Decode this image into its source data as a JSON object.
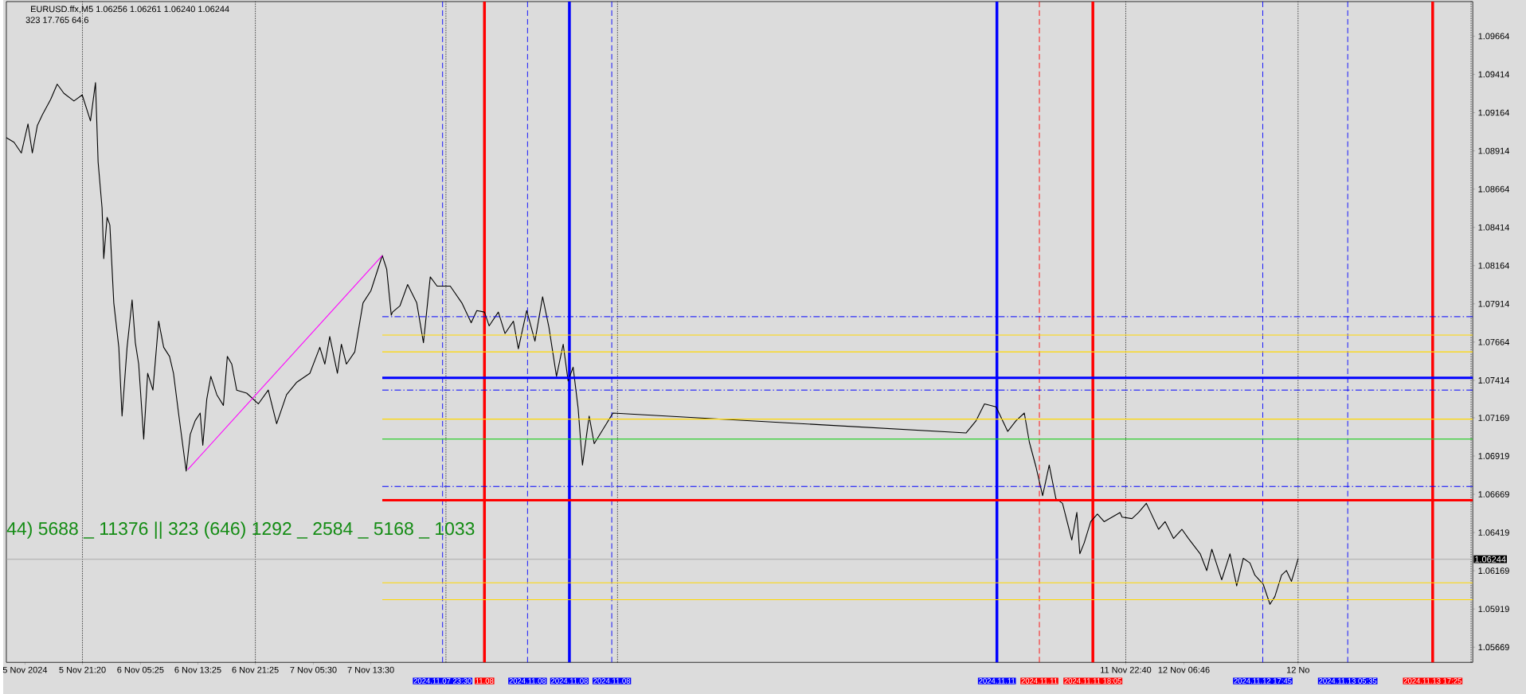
{
  "chart_data": {
    "type": "line",
    "title": "EURUSD.ffx,M5  1.06256 1.06261 1.06240 1.06244",
    "subtitle": "323  17.765  64.6",
    "annotations": [
      "44) 5688 _ 11376 || 323 (646) 1292 _ 2584 _ 5168 _ 1033"
    ],
    "xlim": [
      "2024-11-05T10:44",
      "2024-11-13T23:00"
    ],
    "ylim": [
      1.0557,
      1.0989
    ],
    "xticks": [
      {
        "value": "2024-11-05T13:20",
        "label": "5 Nov 2024"
      },
      {
        "value": "2024-11-05T21:20",
        "label": "5 Nov 21:20"
      },
      {
        "value": "2024-11-06T05:25",
        "label": "6 Nov 05:25"
      },
      {
        "value": "2024-11-06T13:25",
        "label": "6 Nov 13:25"
      },
      {
        "value": "2024-11-06T21:25",
        "label": "6 Nov 21:25"
      },
      {
        "value": "2024-11-07T05:30",
        "label": "7 Nov 05:30"
      },
      {
        "value": "2024-11-07T13:30",
        "label": "7 Nov 13:30"
      },
      {
        "value": "2024-11-11T22:40",
        "label": "11 Nov 22:40"
      },
      {
        "value": "2024-11-12T06:46",
        "label": "12 Nov 06:46"
      },
      {
        "value": "2024-11-12T22:40",
        "label": "12 No"
      }
    ],
    "yticks": [
      1.09664,
      1.09414,
      1.09164,
      1.08914,
      1.08664,
      1.08414,
      1.08164,
      1.07914,
      1.07664,
      1.07414,
      1.07169,
      1.06919,
      1.06669,
      1.06419,
      1.06169,
      1.05919,
      1.05669
    ],
    "series": [
      {
        "color": "#000000",
        "x": [
          "2024-11-05T10:44",
          "2024-11-05T11:48",
          "2024-11-05T12:49",
          "2024-11-05T13:45",
          "2024-11-05T14:21",
          "2024-11-05T15:03",
          "2024-11-05T15:45",
          "2024-11-05T16:54",
          "2024-11-05T17:49",
          "2024-11-05T18:45",
          "2024-11-05T20:09",
          "2024-11-05T21:18",
          "2024-11-05T22:27",
          "2024-11-05T23:09",
          "2024-11-05T23:31",
          "2024-11-06T00:04",
          "2024-11-06T00:18",
          "2024-11-06T00:46",
          "2024-11-06T01:09",
          "2024-11-06T01:42",
          "2024-11-06T02:24",
          "2024-11-06T02:51",
          "2024-11-06T03:33",
          "2024-11-06T04:15",
          "2024-11-06T04:42",
          "2024-11-06T05:10",
          "2024-11-06T05:52",
          "2024-11-06T06:25",
          "2024-11-06T07:09",
          "2024-11-06T07:57",
          "2024-11-06T08:39",
          "2024-11-06T09:28",
          "2024-11-06T10:01",
          "2024-11-06T10:43",
          "2024-11-06T11:47",
          "2024-11-06T12:21",
          "2024-11-06T13:02",
          "2024-11-06T13:44",
          "2024-11-06T14:06",
          "2024-11-06T14:39",
          "2024-11-06T15:13",
          "2024-11-06T16:03",
          "2024-11-06T16:58",
          "2024-11-06T17:31",
          "2024-11-06T18:08",
          "2024-11-06T18:49",
          "2024-11-06T20:13",
          "2024-11-06T21:50",
          "2024-11-06T23:13",
          "2024-11-07T00:23",
          "2024-11-07T01:46",
          "2024-11-07T03:09",
          "2024-11-07T05:01",
          "2024-11-07T06:24",
          "2024-11-07T07:06",
          "2024-11-07T07:47",
          "2024-11-07T08:51",
          "2024-11-07T09:24",
          "2024-11-07T10:06",
          "2024-11-07T11:16",
          "2024-11-07T12:25",
          "2024-11-07T13:31",
          "2024-11-07T15:06",
          "2024-11-07T15:43",
          "2024-11-07T16:21",
          "2024-11-07T16:32",
          "2024-11-07T17:33",
          "2024-11-07T18:38",
          "2024-11-07T19:54",
          "2024-11-07T20:50",
          "2024-11-07T21:47",
          "2024-11-07T22:44",
          "2024-11-08T00:34",
          "2024-11-08T02:11",
          "2024-11-08T03:29",
          "2024-11-08T04:16",
          "2024-11-08T05:20",
          "2024-11-08T05:59",
          "2024-11-08T07:16",
          "2024-11-08T08:12",
          "2024-11-08T09:22",
          "2024-11-08T10:03",
          "2024-11-08T11:13",
          "2024-11-08T12:22",
          "2024-11-08T13:26",
          "2024-11-08T14:19",
          "2024-11-08T15:22",
          "2024-11-08T16:18",
          "2024-11-08T16:59",
          "2024-11-08T17:41",
          "2024-11-08T18:23",
          "2024-11-08T18:59",
          "2024-11-08T19:55",
          "2024-11-08T20:37",
          "2024-11-08T22:19",
          "2024-11-08T23:14",
          "2024-11-11T00:26",
          "2024-11-11T01:49",
          "2024-11-11T02:59",
          "2024-11-11T04:36",
          "2024-11-11T06:13",
          "2024-11-11T07:23",
          "2024-11-11T08:32",
          "2024-11-11T09:14",
          "2024-11-11T10:09",
          "2024-11-11T11:05",
          "2024-11-11T12:00",
          "2024-11-11T12:56",
          "2024-11-11T13:51",
          "2024-11-11T15:09",
          "2024-11-11T15:51",
          "2024-11-11T16:16",
          "2024-11-11T16:52",
          "2024-11-11T17:47",
          "2024-11-11T18:43",
          "2024-11-11T19:39",
          "2024-11-11T21:52",
          "2024-11-11T22:09",
          "2024-11-11T23:32",
          "2024-11-12T00:27",
          "2024-11-12T01:32",
          "2024-11-12T03:14",
          "2024-11-12T04:09",
          "2024-11-12T05:19",
          "2024-11-12T06:29",
          "2024-11-12T07:24",
          "2024-11-12T09:02",
          "2024-11-12T09:57",
          "2024-11-12T10:39",
          "2024-11-12T12:02",
          "2024-11-12T13:11",
          "2024-11-12T14:07",
          "2024-11-12T15:02",
          "2024-11-12T15:58",
          "2024-11-12T16:39",
          "2024-11-12T17:49",
          "2024-11-12T18:45",
          "2024-11-12T19:26",
          "2024-11-12T20:22",
          "2024-11-12T21:03",
          "2024-11-12T21:45",
          "2024-11-12T22:41"
        ],
        "values": [
          1.09,
          1.0897,
          1.089,
          1.0909,
          1.089,
          1.0908,
          1.0915,
          1.0925,
          1.0935,
          1.0929,
          1.0924,
          1.0928,
          1.0911,
          1.0936,
          1.0884,
          1.0854,
          1.0821,
          1.0848,
          1.0843,
          1.0792,
          1.0763,
          1.0718,
          1.0763,
          1.0794,
          1.0766,
          1.0752,
          1.0703,
          1.0746,
          1.0735,
          1.078,
          1.0763,
          1.0757,
          1.0746,
          1.072,
          1.0682,
          1.0706,
          1.0715,
          1.072,
          1.0699,
          1.0729,
          1.0744,
          1.0732,
          1.0725,
          1.0757,
          1.0752,
          1.0735,
          1.0733,
          1.0726,
          1.0735,
          1.0713,
          1.0732,
          1.074,
          1.0746,
          1.0763,
          1.0752,
          1.077,
          1.0746,
          1.0765,
          1.0752,
          1.076,
          1.0792,
          1.08,
          1.0823,
          1.0814,
          1.0784,
          1.0786,
          1.079,
          1.0804,
          1.0792,
          1.0766,
          1.0809,
          1.0803,
          1.0803,
          1.0792,
          1.0779,
          1.0787,
          1.0786,
          1.0777,
          1.0786,
          1.0772,
          1.078,
          1.0762,
          1.0787,
          1.0767,
          1.0796,
          1.0776,
          1.0744,
          1.0765,
          1.0741,
          1.075,
          1.0723,
          1.0686,
          1.0718,
          1.07,
          1.0713,
          1.072,
          1.0707,
          1.0715,
          1.0726,
          1.0724,
          1.0708,
          1.0715,
          1.072,
          1.0701,
          1.0685,
          1.0666,
          1.0686,
          1.0664,
          1.0661,
          1.0637,
          1.0655,
          1.0628,
          1.0635,
          1.0649,
          1.0654,
          1.0649,
          1.0655,
          1.0652,
          1.0651,
          1.0655,
          1.0661,
          1.0644,
          1.0649,
          1.0638,
          1.0644,
          1.0638,
          1.0628,
          1.0617,
          1.0631,
          1.0611,
          1.0628,
          1.0607,
          1.0625,
          1.0622,
          1.0614,
          1.0608,
          1.0595,
          1.06,
          1.0614,
          1.0617,
          1.061,
          1.0625
        ]
      },
      {
        "color": "#ff00ff",
        "x": [
          "2024-11-06T12:00",
          "2024-11-07T15:06"
        ],
        "values": [
          1.0683,
          1.0823
        ]
      },
      {
        "color": "#0000ff",
        "line_style": "dashed",
        "x": [
          "2024-11-07T15:06",
          "2024-11-13T23:00"
        ],
        "values": [
          1.0783,
          1.0783
        ]
      },
      {
        "color": "#ffd700",
        "x": [
          "2024-11-07T15:06",
          "2024-11-13T23:00"
        ],
        "values": [
          1.0771,
          1.0771
        ]
      },
      {
        "color": "#ffd700",
        "x": [
          "2024-11-07T15:06",
          "2024-11-13T23:00"
        ],
        "values": [
          1.076,
          1.076
        ]
      },
      {
        "color": "#0000ff",
        "line_style": "solid",
        "x": [
          "2024-11-07T15:06",
          "2024-11-13T23:00"
        ],
        "values": [
          1.0743,
          1.0743
        ]
      },
      {
        "color": "#0000ff",
        "line_style": "dashed",
        "x": [
          "2024-11-07T15:06",
          "2024-11-13T23:00"
        ],
        "values": [
          1.0735,
          1.0735
        ]
      },
      {
        "color": "#ffd700",
        "x": [
          "2024-11-07T15:06",
          "2024-11-13T23:00"
        ],
        "values": [
          1.0716,
          1.0716
        ]
      },
      {
        "color": "#32cd32",
        "x": [
          "2024-11-07T15:06",
          "2024-11-13T23:00"
        ],
        "values": [
          1.0703,
          1.0703
        ]
      },
      {
        "color": "#0000ff",
        "line_style": "dashed",
        "x": [
          "2024-11-07T15:06",
          "2024-11-13T23:00"
        ],
        "values": [
          1.0672,
          1.0672
        ]
      },
      {
        "color": "#ff0000",
        "line_style": "solid",
        "x": [
          "2024-11-07T15:06",
          "2024-11-13T23:00"
        ],
        "values": [
          1.0663,
          1.0663
        ]
      },
      {
        "color": "#ffd700",
        "x": [
          "2024-11-07T15:06",
          "2024-11-13T23:00"
        ],
        "values": [
          1.0609,
          1.0609
        ]
      },
      {
        "color": "#ffd700",
        "x": [
          "2024-11-07T15:06",
          "2024-11-13T23:00"
        ],
        "values": [
          1.0598,
          1.0598
        ]
      }
    ],
    "ref_lines": [
      {
        "axis": "x",
        "value": "2024-11-05T21:20",
        "color": "#000000",
        "line_style": "dotted"
      },
      {
        "axis": "x",
        "value": "2024-11-06T21:25",
        "color": "#000000",
        "line_style": "dotted"
      },
      {
        "axis": "x",
        "value": "2024-11-07T23:58",
        "color": "#000000",
        "line_style": "dotted"
      },
      {
        "axis": "x",
        "value": "2024-11-08T23:52",
        "color": "#000000",
        "line_style": "dotted"
      },
      {
        "axis": "x",
        "value": "2024-11-11T22:40",
        "color": "#000000",
        "line_style": "dotted"
      },
      {
        "axis": "x",
        "value": "2024-11-12T22:40",
        "color": "#000000",
        "line_style": "dotted"
      },
      {
        "axis": "x",
        "value": "2024-11-13T22:46",
        "color": "#000000",
        "line_style": "dotted"
      },
      {
        "axis": "x",
        "value": "2024-11-07T23:30",
        "label": "2024.11.07 23:30",
        "color": "#0000ff",
        "line_style": "dashed"
      },
      {
        "axis": "x",
        "value": "2024-11-08T05:20",
        "label": "11.08",
        "color": "#ff0000",
        "line_style": "solid"
      },
      {
        "axis": "x",
        "value": "2024-11-08T11:20",
        "label": "2024.11.08",
        "color": "#0000ff",
        "line_style": "dashed"
      },
      {
        "axis": "x",
        "value": "2024-11-08T17:10",
        "label": "2024.11.08",
        "color": "#0000ff",
        "line_style": "solid"
      },
      {
        "axis": "x",
        "value": "2024-11-08T23:04",
        "label": "2024.11.08",
        "color": "#0000ff",
        "line_style": "dashed"
      },
      {
        "axis": "x",
        "value": "2024-11-11T04:43",
        "label": "2024.11.11",
        "color": "#0000ff",
        "line_style": "solid"
      },
      {
        "axis": "x",
        "value": "2024-11-11T10:38",
        "label": "2024.11.11",
        "color": "#ff0000",
        "line_style": "dashed"
      },
      {
        "axis": "x",
        "value": "2024-11-11T18:05",
        "label": "2024.11.11 18:05",
        "color": "#ff0000",
        "line_style": "solid"
      },
      {
        "axis": "x",
        "value": "2024-11-12T17:45",
        "label": "2024.11.12 17:45",
        "color": "#0000ff",
        "line_style": "dashed"
      },
      {
        "axis": "x",
        "value": "2024-11-13T05:35",
        "label": "2024.11.13 05:35",
        "color": "#0000ff",
        "line_style": "dashed"
      },
      {
        "axis": "x",
        "value": "2024-11-13T17:25",
        "label": "2024.11.13 17:25",
        "color": "#ff0000",
        "line_style": "solid"
      },
      {
        "axis": "y",
        "value": 1.06244,
        "label": "1.06244",
        "color": "#a0a0a0",
        "line_style": "solid"
      }
    ]
  }
}
